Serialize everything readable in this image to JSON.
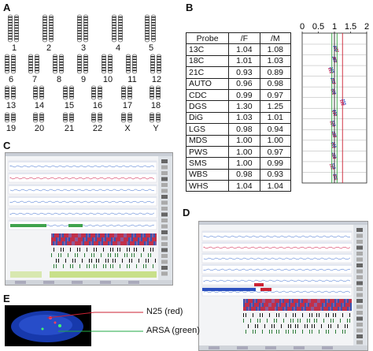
{
  "panels": {
    "a": "A",
    "b": "B",
    "c": "C",
    "d": "D",
    "e": "E"
  },
  "karyotype": {
    "labels": [
      "1",
      "2",
      "3",
      "4",
      "5",
      "6",
      "7",
      "8",
      "9",
      "10",
      "11",
      "12",
      "13",
      "14",
      "15",
      "16",
      "17",
      "18",
      "19",
      "20",
      "21",
      "22",
      "X",
      "Y"
    ]
  },
  "probe_table": {
    "headers": [
      "Probe",
      "/F",
      "/M"
    ],
    "rows": [
      {
        "probe": "13C",
        "f": "1.04",
        "m": "1.08"
      },
      {
        "probe": "18C",
        "f": "1.01",
        "m": "1.03"
      },
      {
        "probe": "21C",
        "f": "0.93",
        "m": "0.89"
      },
      {
        "probe": "AUTO",
        "f": "0.96",
        "m": "0.98"
      },
      {
        "probe": "CDC",
        "f": "0.99",
        "m": "0.97"
      },
      {
        "probe": "DGS",
        "f": "1.30",
        "m": "1.25"
      },
      {
        "probe": "DiG",
        "f": "1.03",
        "m": "1.01"
      },
      {
        "probe": "LGS",
        "f": "0.98",
        "m": "0.94"
      },
      {
        "probe": "MDS",
        "f": "1.00",
        "m": "1.00"
      },
      {
        "probe": "PWS",
        "f": "1.00",
        "m": "0.97"
      },
      {
        "probe": "SMS",
        "f": "1.00",
        "m": "0.99"
      },
      {
        "probe": "WBS",
        "f": "0.98",
        "m": "0.93"
      },
      {
        "probe": "WHS",
        "f": "1.04",
        "m": "1.04"
      }
    ]
  },
  "ratio_axis": {
    "ticks": [
      "0",
      "0.5",
      "1",
      "1.5",
      "2"
    ],
    "range": [
      0,
      2
    ]
  },
  "fish": {
    "label_red": "N25 (red)",
    "label_green": "ARSA (green)"
  },
  "colors": {
    "red_probe": "#cc2233",
    "green_probe": "#22aa44",
    "nucleus": "#1a3fbf",
    "chrom_band": "#222222"
  }
}
